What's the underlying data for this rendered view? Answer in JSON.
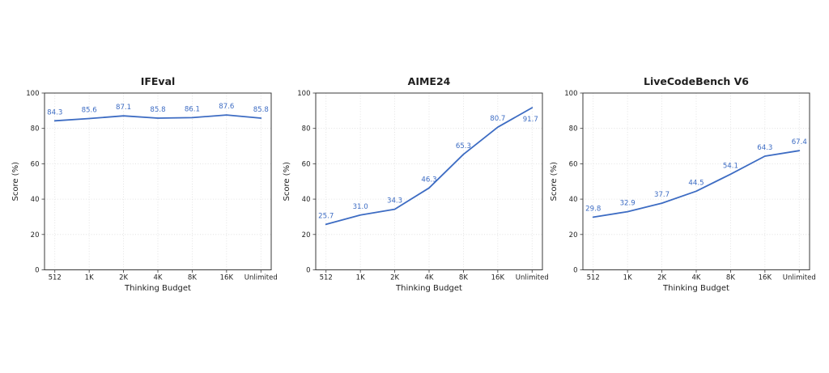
{
  "figure": {
    "background": "#ffffff",
    "xlabel": "Thinking Budget",
    "ylabel": "Score (%)",
    "x_categories": [
      "512",
      "1K",
      "2K",
      "4K",
      "8K",
      "16K",
      "Unlimited"
    ],
    "y_ticks": [
      0,
      20,
      40,
      60,
      80,
      100
    ],
    "ylim": [
      0,
      100
    ],
    "colors": {
      "line": "#3d6cc3",
      "value_label": "#3d6cc3",
      "spine": "#3a3a3a",
      "grid": "#dcdcdc",
      "text": "#1f1f1f"
    }
  },
  "chart_data": [
    {
      "type": "line",
      "title": "IFEval",
      "xlabel": "Thinking Budget",
      "ylabel": "Score (%)",
      "categories": [
        "512",
        "1K",
        "2K",
        "4K",
        "8K",
        "16K",
        "Unlimited"
      ],
      "values": [
        84.3,
        85.6,
        87.1,
        85.8,
        86.1,
        87.6,
        85.8
      ],
      "ylim": [
        0,
        100
      ],
      "grid": true,
      "legend": false
    },
    {
      "type": "line",
      "title": "AIME24",
      "xlabel": "Thinking Budget",
      "ylabel": "Score (%)",
      "categories": [
        "512",
        "1K",
        "2K",
        "4K",
        "8K",
        "16K",
        "Unlimited"
      ],
      "values": [
        25.7,
        31.0,
        34.3,
        46.3,
        65.3,
        80.7,
        91.7
      ],
      "ylim": [
        0,
        100
      ],
      "grid": true,
      "legend": false
    },
    {
      "type": "line",
      "title": "LiveCodeBench V6",
      "xlabel": "Thinking Budget",
      "ylabel": "Score (%)",
      "categories": [
        "512",
        "1K",
        "2K",
        "4K",
        "8K",
        "16K",
        "Unlimited"
      ],
      "values": [
        29.8,
        32.9,
        37.7,
        44.5,
        54.1,
        64.3,
        67.4
      ],
      "ylim": [
        0,
        100
      ],
      "grid": true,
      "legend": false
    }
  ]
}
